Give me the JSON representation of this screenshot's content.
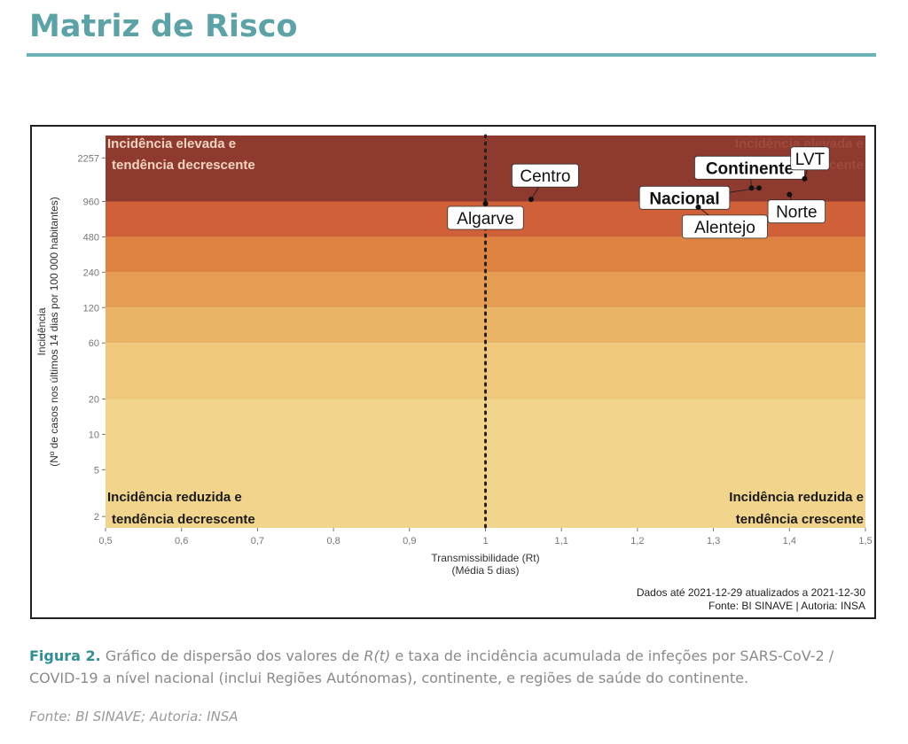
{
  "page": {
    "title": "Matriz de Risco"
  },
  "caption": {
    "label": "Figura 2.",
    "text_before": " Gráfico de dispersão dos valores de ",
    "italic": "R(t)",
    "text_after": " e taxa de incidência acumulada de infeções por SARS-CoV-2 / COVID-19 a nível nacional (inclui Regiões Autónomas), continente, e regiões de saúde do continente."
  },
  "source": "Fonte: BI SINAVE; Autoria: INSA",
  "chart_data": {
    "type": "scatter",
    "xlabel": "Transmissibilidade (Rt)",
    "xlabel_sub": "(Média 5 dias)",
    "ylabel": "Incidência",
    "ylabel_sub": "(Nº de casos nos últimos 14 dias por 100 000 habitantes)",
    "xlim": [
      0.5,
      1.5
    ],
    "y_scale": "log",
    "ylim": [
      1.6,
      3500
    ],
    "x_ticks": [
      "0,5",
      "0,6",
      "0,7",
      "0,8",
      "0,9",
      "1",
      "1,1",
      "1,2",
      "1,3",
      "1,4",
      "1,5"
    ],
    "y_ticks": [
      2,
      5,
      10,
      20,
      60,
      120,
      240,
      480,
      960,
      2257
    ],
    "reference_line_x": 1,
    "bands": [
      {
        "from": 1.6,
        "to": 20,
        "color": "#f2d58c"
      },
      {
        "from": 20,
        "to": 60,
        "color": "#efc87c"
      },
      {
        "from": 60,
        "to": 120,
        "color": "#eab467"
      },
      {
        "from": 120,
        "to": 240,
        "color": "#e49d53"
      },
      {
        "from": 240,
        "to": 480,
        "color": "#de8342"
      },
      {
        "from": 480,
        "to": 960,
        "color": "#cf6038"
      },
      {
        "from": 960,
        "to": 3500,
        "color": "#8f3a2e"
      }
    ],
    "points": [
      {
        "label": "Algarve",
        "x": 1.0,
        "y": 920,
        "bold": false
      },
      {
        "label": "Centro",
        "x": 1.06,
        "y": 1000,
        "bold": false
      },
      {
        "label": "Nacional",
        "x": 1.36,
        "y": 1250,
        "bold": true
      },
      {
        "label": "Alentejo",
        "x": 1.28,
        "y": 860,
        "bold": false
      },
      {
        "label": "Continente",
        "x": 1.35,
        "y": 1250,
        "bold": true
      },
      {
        "label": "LVT",
        "x": 1.42,
        "y": 1500,
        "bold": false
      },
      {
        "label": "Norte",
        "x": 1.4,
        "y": 1100,
        "bold": false
      }
    ],
    "quadrants": {
      "top_left": [
        "Incidência elevada e",
        "tendência decrescente"
      ],
      "top_right": [
        "Incidência elevada e",
        "tendência crescente"
      ],
      "bottom_left": [
        "Incidência reduzida e",
        "tendência decrescente"
      ],
      "bottom_right": [
        "Incidência reduzida e",
        "tendência crescente"
      ]
    },
    "footnote": [
      "Dados até 2021-12-29 atualizados a 2021-12-30",
      "Fonte: BI SINAVE | Autoria: INSA"
    ]
  }
}
